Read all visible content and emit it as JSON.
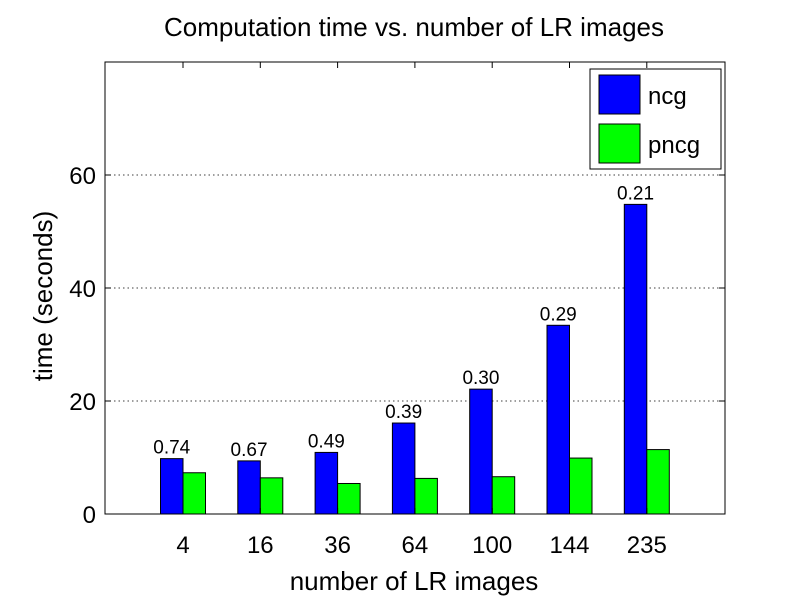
{
  "chart_data": {
    "type": "bar",
    "title": "Computation time vs. number of LR images",
    "xlabel": "number of LR images",
    "ylabel": "time (seconds)",
    "categories": [
      "4",
      "16",
      "36",
      "64",
      "100",
      "144",
      "235"
    ],
    "ylim": [
      0,
      80
    ],
    "yticks": [
      0,
      20,
      40,
      60
    ],
    "grid": "horizontal-dotted",
    "legend_placement": "top-right",
    "series": [
      {
        "name": "ncg",
        "color": "#0000ff",
        "values": [
          9.8,
          9.4,
          10.9,
          16.1,
          22.1,
          33.4,
          54.8
        ]
      },
      {
        "name": "pncg",
        "color": "#00ff00",
        "values": [
          7.3,
          6.4,
          5.4,
          6.3,
          6.6,
          9.9,
          11.4
        ]
      }
    ],
    "annotations": [
      "0.74",
      "0.67",
      "0.49",
      "0.39",
      "0.30",
      "0.29",
      "0.21"
    ]
  }
}
